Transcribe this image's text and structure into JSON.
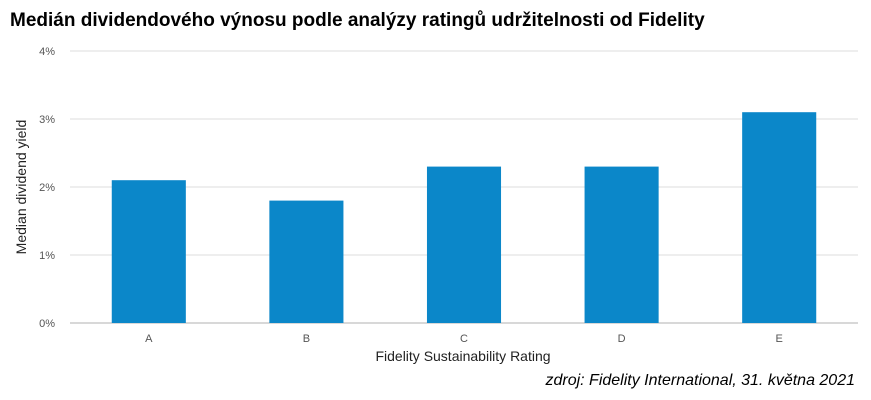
{
  "chart_data": {
    "type": "bar",
    "title": "Medián dividendového výnosu podle analýzy ratingů udržitelnosti od Fidelity",
    "xlabel": "Fidelity Sustainability Rating",
    "ylabel": "Median dividend yield",
    "categories": [
      "A",
      "B",
      "C",
      "D",
      "E"
    ],
    "values": [
      2.1,
      1.8,
      2.3,
      2.3,
      3.1
    ],
    "ylim": [
      0,
      4
    ],
    "yticks": [
      0,
      1,
      2,
      3,
      4
    ],
    "ytick_labels": [
      "0%",
      "1%",
      "2%",
      "3%",
      "4%"
    ],
    "grid": true,
    "legend": "none",
    "bar_color": "#0b87c9",
    "grid_color": "#dddddd"
  },
  "source_note": "zdroj: Fidelity International, 31. května 2021"
}
